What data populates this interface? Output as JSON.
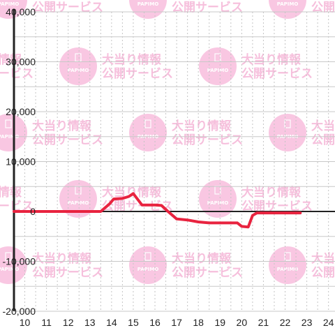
{
  "watermark": {
    "line1": "大当り情報",
    "line2": "公開サービス",
    "badge": "PAPIMO",
    "color": "#f9c7e2"
  },
  "chart_data": {
    "type": "line",
    "title": "",
    "xlabel": "",
    "ylabel": "",
    "xlim": [
      9.5,
      24.3
    ],
    "ylim": [
      -20000,
      40000
    ],
    "x_ticks": [
      10,
      11,
      12,
      13,
      14,
      15,
      16,
      17,
      18,
      19,
      20,
      21,
      22,
      23,
      24
    ],
    "x_tick_labels": [
      "10",
      "11",
      "12",
      "13",
      "14",
      "15",
      "16",
      "17",
      "18",
      "19",
      "20",
      "21",
      "22",
      "23",
      "24"
    ],
    "y_ticks": [
      -20000,
      -10000,
      0,
      10000,
      20000,
      30000,
      40000
    ],
    "y_tick_labels": [
      "-20,000",
      "-10,000",
      "0",
      "10,000",
      "20,000",
      "30,000",
      "40,000"
    ],
    "grid": true,
    "legend": "none",
    "line_color": "#e8233f",
    "series": [
      {
        "x": [
          9.5,
          13.5,
          13.9,
          14.1,
          14.5,
          14.8,
          15.0,
          15.4,
          16.0,
          16.3,
          16.6,
          17.0,
          17.5,
          18.0,
          18.5,
          19.0,
          19.8,
          20.0,
          20.3,
          20.5,
          20.7,
          22.7
        ],
        "y": [
          0,
          0,
          1500,
          2500,
          2600,
          3000,
          3600,
          1300,
          1300,
          1200,
          0,
          -1500,
          -1700,
          -2100,
          -2300,
          -2300,
          -2300,
          -3000,
          -3100,
          -800,
          -300,
          -300
        ]
      }
    ]
  }
}
